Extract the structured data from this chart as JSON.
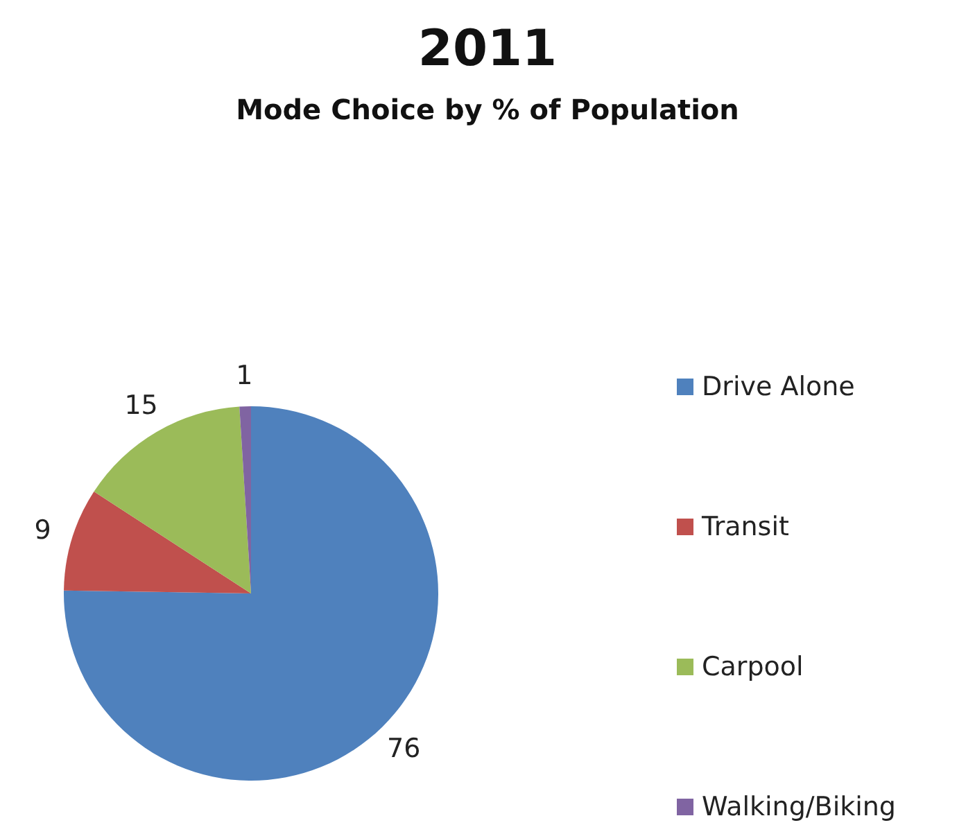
{
  "chart_data": {
    "type": "pie",
    "title": "2011",
    "subtitle": "Mode Choice by % of Population",
    "categories": [
      "Drive Alone",
      "Transit",
      "Carpool",
      "Walking/Biking"
    ],
    "values": [
      76,
      9,
      15,
      1
    ],
    "colors": [
      "#4f81bd",
      "#c0504d",
      "#9bbb59",
      "#8064a2"
    ],
    "data_labels": true,
    "legend": "right"
  }
}
